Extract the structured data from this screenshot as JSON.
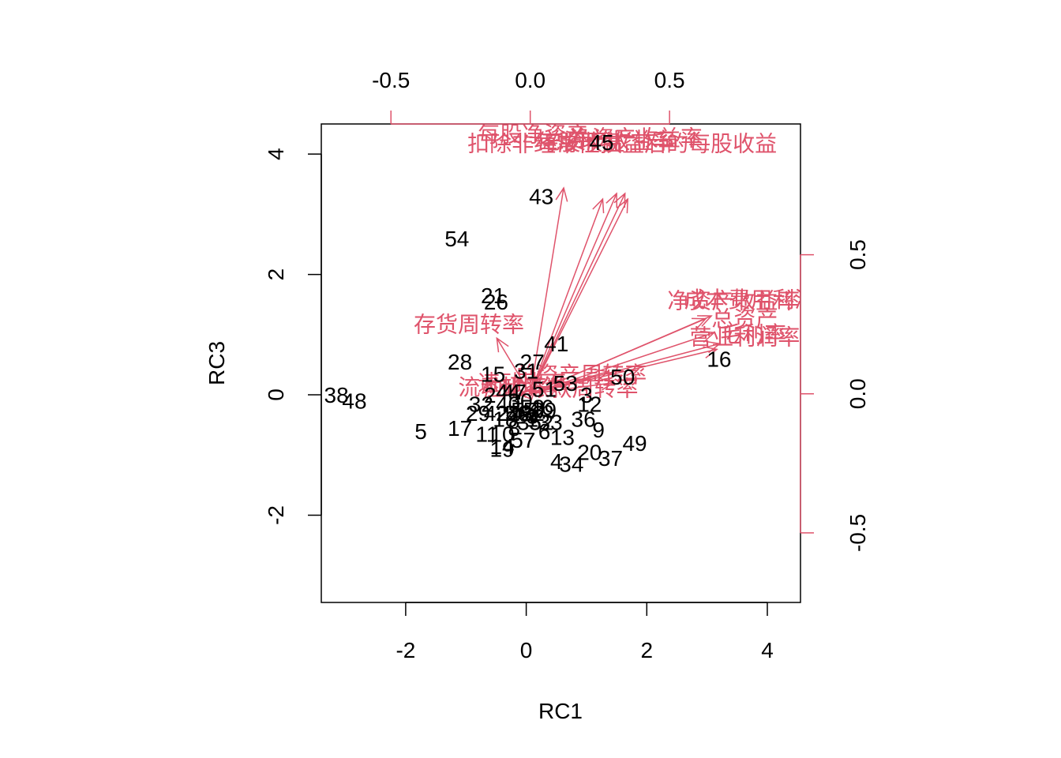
{
  "colors": {
    "points": "#000000",
    "loadings": "#DF536B",
    "frame": "#000000",
    "background": "#ffffff"
  },
  "chart_data": {
    "type": "scatter",
    "subtype": "biplot",
    "title": "",
    "xlabel": "RC1",
    "ylabel": "RC3",
    "xlim": [
      -3.4,
      4.55
    ],
    "ylim": [
      -3.45,
      4.5
    ],
    "x_ticks": [
      -2,
      0,
      2,
      4
    ],
    "y_ticks": [
      -2,
      0,
      2,
      4
    ],
    "top_axis": {
      "lim": [
        -0.75,
        0.97
      ],
      "ticks": [
        -0.5,
        0.0,
        0.5
      ],
      "tick_labels": [
        "-0.5",
        "0.0",
        "0.5"
      ]
    },
    "right_axis": {
      "lim": [
        -0.75,
        0.97
      ],
      "ticks": [
        -0.5,
        0.0,
        0.5
      ],
      "tick_labels": [
        "-0.5",
        "0.0",
        "0.5"
      ]
    },
    "grid": false,
    "legend": "none",
    "scores": [
      {
        "label": "1",
        "x": 0.1,
        "y": -0.4
      },
      {
        "label": "2",
        "x": -0.6,
        "y": 0.0
      },
      {
        "label": "3",
        "x": 1.0,
        "y": 0.0
      },
      {
        "label": "4",
        "x": 0.5,
        "y": -1.1
      },
      {
        "label": "5",
        "x": -1.75,
        "y": -0.6
      },
      {
        "label": "6",
        "x": 0.3,
        "y": -0.6
      },
      {
        "label": "7",
        "x": 0.05,
        "y": -0.75
      },
      {
        "label": "8",
        "x": -0.2,
        "y": -0.55
      },
      {
        "label": "9",
        "x": 1.2,
        "y": -0.58
      },
      {
        "label": "10",
        "x": -0.4,
        "y": -0.65
      },
      {
        "label": "11",
        "x": -0.65,
        "y": -0.65
      },
      {
        "label": "12",
        "x": 1.05,
        "y": -0.15
      },
      {
        "label": "13",
        "x": 0.6,
        "y": -0.7
      },
      {
        "label": "14",
        "x": -0.4,
        "y": -0.85
      },
      {
        "label": "15",
        "x": -0.55,
        "y": 0.35
      },
      {
        "label": "16",
        "x": 3.2,
        "y": 0.6
      },
      {
        "label": "17",
        "x": -1.1,
        "y": -0.55
      },
      {
        "label": "18",
        "x": -0.35,
        "y": -0.4
      },
      {
        "label": "19",
        "x": -0.4,
        "y": -0.9
      },
      {
        "label": "20",
        "x": 1.05,
        "y": -0.95
      },
      {
        "label": "21",
        "x": -0.55,
        "y": 1.65
      },
      {
        "label": "22",
        "x": 0.1,
        "y": -0.3
      },
      {
        "label": "23",
        "x": 0.0,
        "y": -0.35
      },
      {
        "label": "24",
        "x": -0.3,
        "y": -0.3
      },
      {
        "label": "25",
        "x": -0.1,
        "y": -0.3
      },
      {
        "label": "26",
        "x": -0.5,
        "y": 1.55
      },
      {
        "label": "27",
        "x": 0.1,
        "y": 0.55
      },
      {
        "label": "28",
        "x": -1.1,
        "y": 0.55
      },
      {
        "label": "29",
        "x": -0.8,
        "y": -0.3
      },
      {
        "label": "30",
        "x": -0.1,
        "y": -0.1
      },
      {
        "label": "31",
        "x": 0.0,
        "y": 0.4
      },
      {
        "label": "32",
        "x": -0.75,
        "y": -0.15
      },
      {
        "label": "33",
        "x": 0.4,
        "y": -0.45
      },
      {
        "label": "34",
        "x": 0.75,
        "y": -1.15
      },
      {
        "label": "35",
        "x": 0.05,
        "y": -0.45
      },
      {
        "label": "36",
        "x": 0.95,
        "y": -0.4
      },
      {
        "label": "37",
        "x": 1.4,
        "y": -1.05
      },
      {
        "label": "38",
        "x": -3.15,
        "y": 0.0
      },
      {
        "label": "39",
        "x": 0.3,
        "y": -0.25
      },
      {
        "label": "40",
        "x": -0.3,
        "y": -0.15
      },
      {
        "label": "41",
        "x": 0.5,
        "y": 0.85
      },
      {
        "label": "42",
        "x": -0.5,
        "y": -0.3
      },
      {
        "label": "43",
        "x": 0.25,
        "y": 3.3
      },
      {
        "label": "44",
        "x": -0.3,
        "y": 0.05
      },
      {
        "label": "45",
        "x": 1.25,
        "y": 4.2
      },
      {
        "label": "46",
        "x": 0.25,
        "y": -0.2
      },
      {
        "label": "47",
        "x": -0.2,
        "y": 0.05
      },
      {
        "label": "48",
        "x": -2.85,
        "y": -0.1
      },
      {
        "label": "49",
        "x": 1.8,
        "y": -0.8
      },
      {
        "label": "50",
        "x": 1.6,
        "y": 0.3
      },
      {
        "label": "51",
        "x": 0.3,
        "y": 0.1
      },
      {
        "label": "52",
        "x": 0.25,
        "y": -0.45
      },
      {
        "label": "53",
        "x": 0.65,
        "y": 0.2
      },
      {
        "label": "54",
        "x": -1.15,
        "y": 2.6
      },
      {
        "label": "55",
        "x": -0.05,
        "y": -0.25
      },
      {
        "label": "56",
        "x": -0.15,
        "y": -0.3
      },
      {
        "label": "57",
        "x": -0.05,
        "y": -0.75
      },
      {
        "label": "58",
        "x": 0.1,
        "y": -0.2
      }
    ],
    "loadings": [
      {
        "name": "每股净资产",
        "x": 0.12,
        "y": 0.74,
        "label_x": 0.01,
        "label_y": 0.935
      },
      {
        "name": "扣除非经常性损益后的每股收益",
        "x": 0.26,
        "y": 0.7,
        "label_x": 0.33,
        "label_y": 0.9
      },
      {
        "name": "每股收益",
        "x": 0.34,
        "y": 0.72,
        "label_x": 0.18,
        "label_y": 0.905
      },
      {
        "name": "净资产收益率",
        "x": 0.31,
        "y": 0.72,
        "label_x": 0.38,
        "label_y": 0.92
      },
      {
        "name": "总资产收益率",
        "x": 0.35,
        "y": 0.7,
        "label_x": 0.28,
        "label_y": 0.91
      },
      {
        "name": "存货周转率",
        "x": -0.12,
        "y": 0.2,
        "label_x": -0.22,
        "label_y": 0.25
      },
      {
        "name": "净资产收益率",
        "x": 0.63,
        "y": 0.27,
        "label_x": 0.73,
        "label_y": 0.335
      },
      {
        "name": "成本费用利润率",
        "x": 0.65,
        "y": 0.28,
        "label_x": 0.83,
        "label_y": 0.34
      },
      {
        "name": "总资产",
        "x": 0.66,
        "y": 0.22,
        "label_x": 0.77,
        "label_y": 0.27
      },
      {
        "name": "营业利润率",
        "x": 0.68,
        "y": 0.18,
        "label_x": 0.77,
        "label_y": 0.205
      },
      {
        "name": "毛利率",
        "x": 0.67,
        "y": 0.16,
        "label_x": 0.8,
        "label_y": 0.215
      },
      {
        "name": "总资产周转率",
        "x": 0.28,
        "y": 0.08,
        "label_x": 0.18,
        "label_y": 0.07
      },
      {
        "name": "流动比率",
        "x": -0.04,
        "y": 0.0,
        "label_x": -0.1,
        "label_y": 0.025
      },
      {
        "name": "速动比率",
        "x": 0.02,
        "y": 0.02,
        "label_x": -0.03,
        "label_y": 0.04
      },
      {
        "name": "应收账款周转率",
        "x": 0.3,
        "y": 0.04,
        "label_x": 0.11,
        "label_y": 0.02
      }
    ]
  }
}
